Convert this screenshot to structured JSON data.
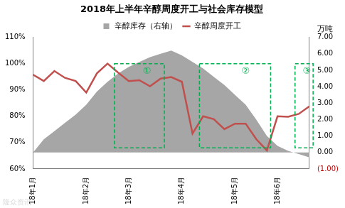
{
  "chart_data": {
    "type": "line",
    "title": "2018年上半年辛醇周度开工与社会库存模型",
    "categories": [
      "18年1月",
      null,
      null,
      null,
      null,
      "18年2月",
      null,
      null,
      null,
      "18年3月",
      null,
      null,
      null,
      null,
      "18年4月",
      null,
      null,
      null,
      null,
      "18年5月",
      null,
      null,
      null,
      "18年6月",
      null,
      null,
      null
    ],
    "series": [
      {
        "name": "辛醇库存（右轴）",
        "type": "area",
        "color": "#a6a6a6",
        "axis": "y2",
        "values": [
          0,
          0.8,
          1.3,
          1.8,
          2.3,
          2.9,
          3.7,
          4.3,
          4.8,
          5.2,
          5.5,
          5.8,
          6.0,
          6.2,
          5.9,
          5.5,
          5.1,
          4.6,
          4.1,
          3.5,
          2.9,
          2.0,
          1.0,
          0.4,
          0.1,
          -0.1,
          -0.3
        ]
      },
      {
        "name": "辛醇周度开工",
        "type": "line",
        "color": "#c0504d",
        "values": [
          95.8,
          93.4,
          97.2,
          94.6,
          93.4,
          89,
          96.3,
          100,
          96.6,
          93.4,
          93.7,
          91.4,
          94.3,
          94.9,
          93.1,
          73.4,
          80,
          78.9,
          75.1,
          77.2,
          77.2,
          71.3,
          67,
          80,
          79.8,
          80.9,
          83.8
        ]
      }
    ],
    "ylim": [
      60,
      110
    ],
    "yticks": [
      {
        "value": 60,
        "label": "60%"
      },
      {
        "value": 70,
        "label": "70%"
      },
      {
        "value": 80,
        "label": "80%"
      },
      {
        "value": 90,
        "label": "90%"
      },
      {
        "value": 100,
        "label": "100%"
      },
      {
        "value": 110,
        "label": "110%"
      }
    ],
    "y2lim": [
      -1,
      7
    ],
    "y2ticks": [
      {
        "value": -1,
        "label": "(1.00)"
      },
      {
        "value": 0,
        "label": "0.00"
      },
      {
        "value": 1,
        "label": "1.00"
      },
      {
        "value": 2,
        "label": "2.00"
      },
      {
        "value": 3,
        "label": "3.00"
      },
      {
        "value": 4,
        "label": "4.00"
      },
      {
        "value": 5,
        "label": "5.00"
      },
      {
        "value": 6,
        "label": "6.00"
      },
      {
        "value": 7,
        "label": "7.00"
      }
    ],
    "y2label": "万吨",
    "grid": false,
    "legend": "top",
    "annotations": [
      {
        "text": "①",
        "start": 8,
        "end": 12
      },
      {
        "text": "②",
        "start": 16,
        "end": 22
      },
      {
        "text": "③",
        "start": 25,
        "end": 26
      }
    ],
    "watermark": "隆众资讯"
  }
}
